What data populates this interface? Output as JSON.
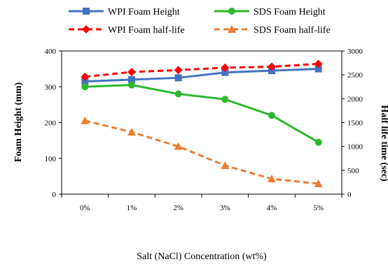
{
  "chart_data": {
    "type": "line",
    "categories": [
      "0%",
      "1%",
      "2%",
      "3%",
      "4%",
      "5%"
    ],
    "xlabel": "Salt (NaCl) Concentration (wt%)",
    "ylabel": "Foam Height (mm)",
    "y2label": "Half life time (sec)",
    "ylim": [
      0,
      400
    ],
    "y2lim": [
      0,
      3000
    ],
    "yticks": [
      "0",
      "100",
      "200",
      "300",
      "400"
    ],
    "y2ticks": [
      "0",
      "500",
      "1000",
      "1500",
      "2000",
      "2500",
      "3000"
    ],
    "grid": false,
    "legend_position": "top",
    "series": [
      {
        "name": "WPI Foam Height",
        "axis": "left",
        "color": "#4472C4",
        "marker": "square",
        "dash": "solid",
        "values": [
          315,
          320,
          325,
          340,
          345,
          350
        ]
      },
      {
        "name": "SDS Foam Height",
        "axis": "left",
        "color": "#2DB82D",
        "marker": "circle",
        "dash": "solid",
        "values": [
          300,
          305,
          280,
          265,
          220,
          145
        ]
      },
      {
        "name": "WPI Foam half-life",
        "axis": "right",
        "color": "#FF0000",
        "marker": "diamond",
        "dash": "dashed",
        "values": [
          2460,
          2560,
          2600,
          2650,
          2670,
          2730
        ]
      },
      {
        "name": "SDS Foam half-life",
        "axis": "right",
        "color": "#ED7D31",
        "marker": "triangle",
        "dash": "dashed",
        "values": [
          1540,
          1300,
          1000,
          600,
          320,
          220
        ]
      }
    ]
  }
}
